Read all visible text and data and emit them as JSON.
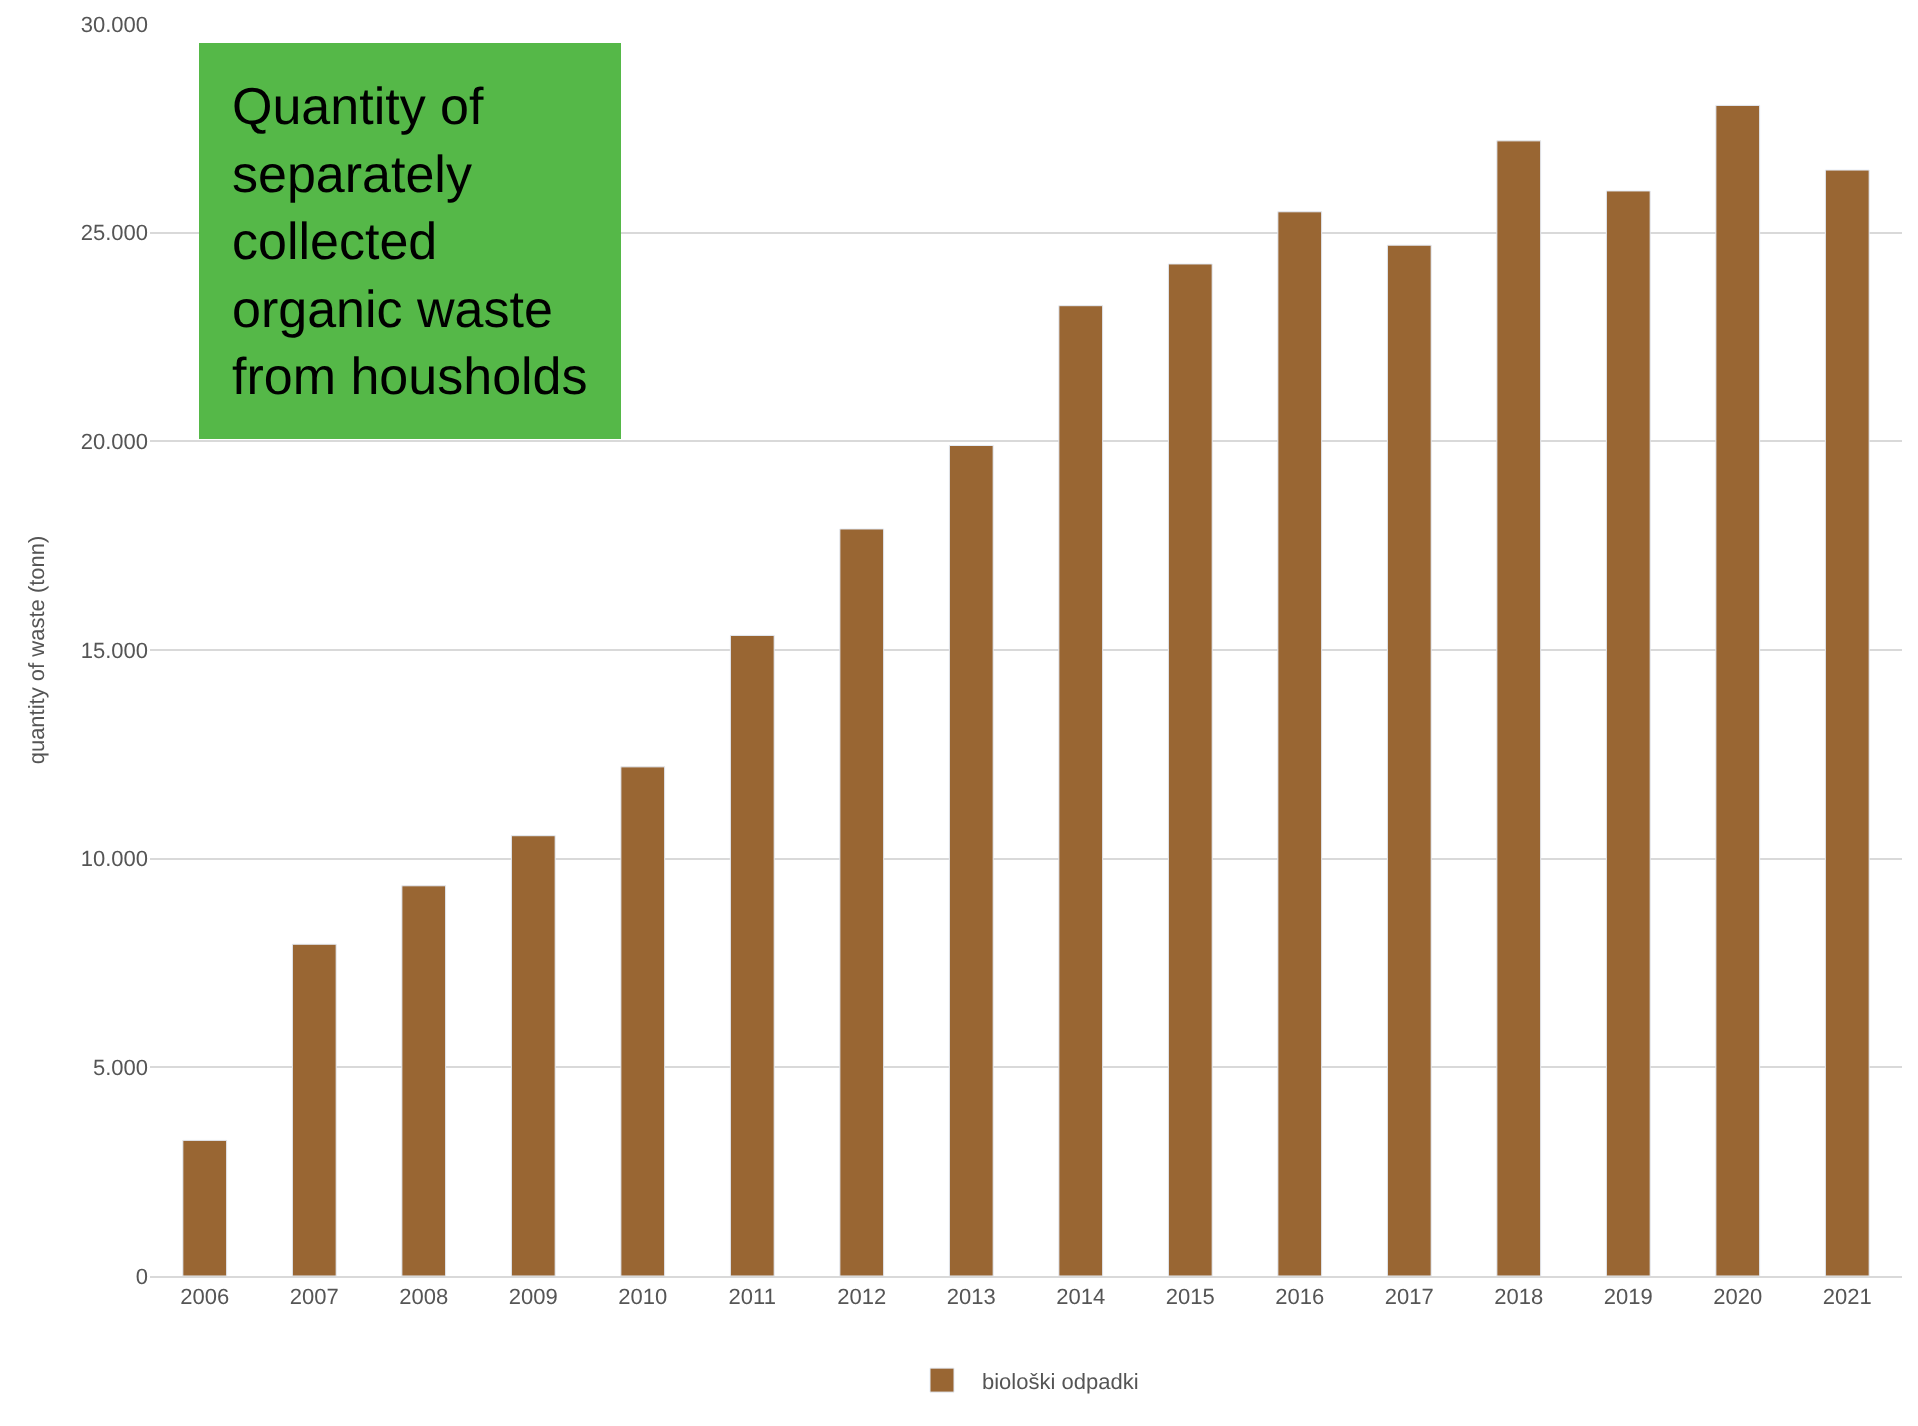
{
  "chart_data": {
    "type": "bar",
    "title": "Quantity of separately collected organic waste from housholds",
    "ylabel": "quantity of waste (tonn)",
    "categories": [
      "2006",
      "2007",
      "2008",
      "2009",
      "2010",
      "2011",
      "2012",
      "2013",
      "2014",
      "2015",
      "2016",
      "2017",
      "2018",
      "2019",
      "2020",
      "2021"
    ],
    "series": [
      {
        "name": "biološki odpadki",
        "color": "#996633",
        "values": [
          3250,
          7950,
          9350,
          10550,
          12200,
          15350,
          17900,
          19900,
          23250,
          24250,
          25500,
          24700,
          27200,
          26000,
          28050,
          26500
        ]
      }
    ],
    "ylim": [
      0,
      30000
    ],
    "yticks": [
      0,
      {
        "value": 5000,
        "label": "5.000"
      },
      {
        "value": 10000,
        "label": "10.000"
      },
      {
        "value": 15000,
        "label": "15.000"
      },
      {
        "value": 20000,
        "label": "20.000"
      },
      {
        "value": 25000,
        "label": "25.000"
      },
      {
        "value": 30000,
        "label": "30.000"
      }
    ],
    "grid": "y",
    "legend": "bottom"
  }
}
